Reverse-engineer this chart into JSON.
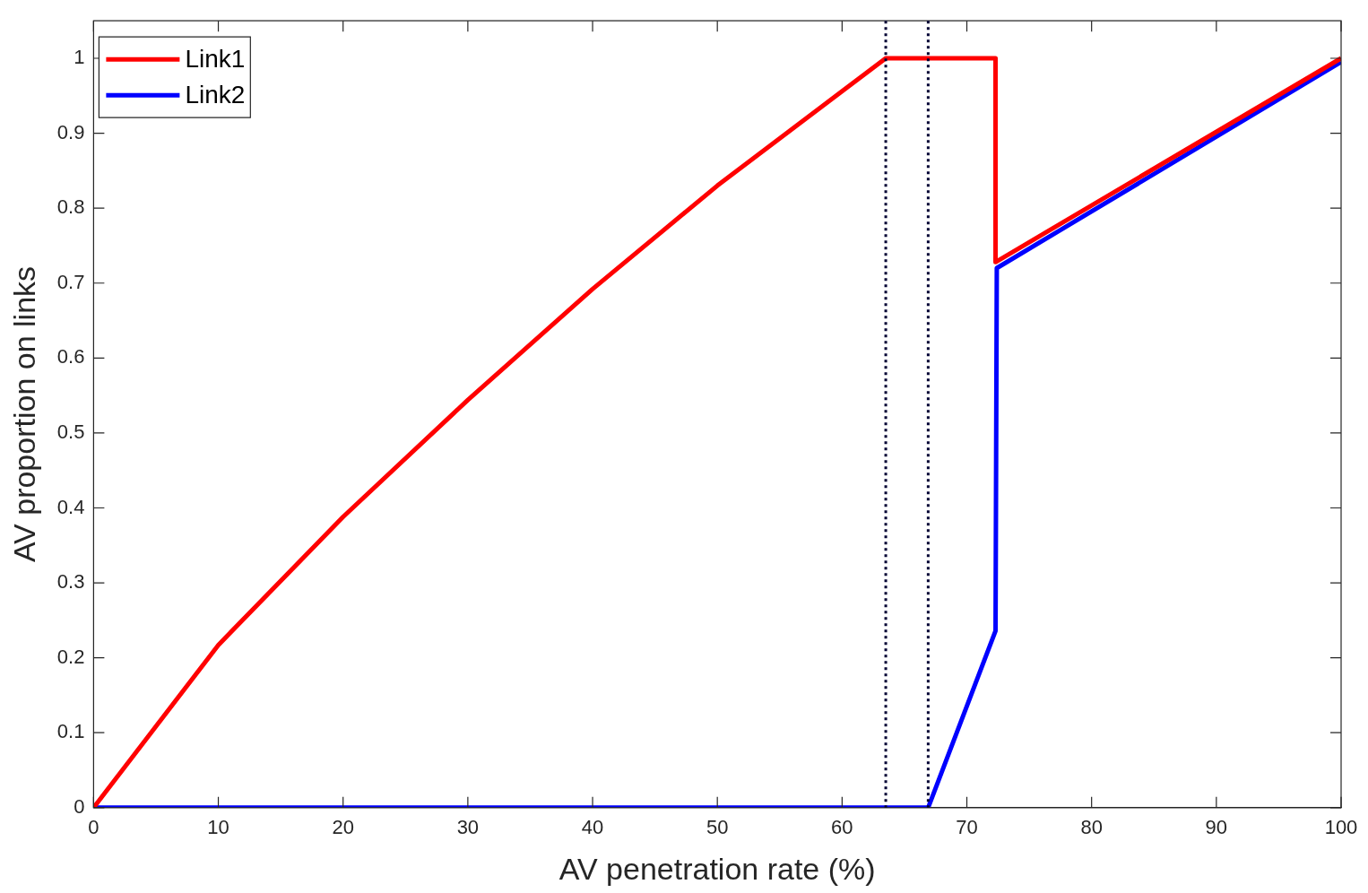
{
  "chart_data": {
    "type": "line",
    "xlabel": "AV penetration rate (%)",
    "ylabel": "AV proportion on links",
    "xlim": [
      0,
      100
    ],
    "ylim": [
      0,
      1.05
    ],
    "xticks": [
      0,
      10,
      20,
      30,
      40,
      50,
      60,
      70,
      80,
      90,
      100
    ],
    "yticks": [
      0,
      0.1,
      0.2,
      0.3,
      0.4,
      0.5,
      0.6,
      0.7,
      0.8,
      0.9,
      1
    ],
    "grid": false,
    "legend": "top left",
    "line_style": "solid",
    "marker": "none",
    "series": [
      {
        "name": "Link1",
        "color": "#ff0000",
        "x": [
          0,
          10,
          20,
          30,
          40,
          50,
          60,
          63.5,
          72.3,
          72.3,
          100
        ],
        "values": [
          0,
          0.217,
          0.388,
          0.544,
          0.692,
          0.83,
          0.956,
          1,
          1,
          0.728,
          1
        ]
      },
      {
        "name": "Link2",
        "color": "#0000ff",
        "x": [
          0,
          66.9,
          72.3,
          72.4,
          100
        ],
        "values": [
          0,
          0,
          0.236,
          0.72,
          0.995
        ]
      }
    ],
    "ref_lines": [
      {
        "axis": "x",
        "value": 63.5,
        "color": "#000033",
        "line_style": "dotted"
      },
      {
        "axis": "x",
        "value": 66.9,
        "color": "#000033",
        "line_style": "dotted"
      }
    ]
  }
}
